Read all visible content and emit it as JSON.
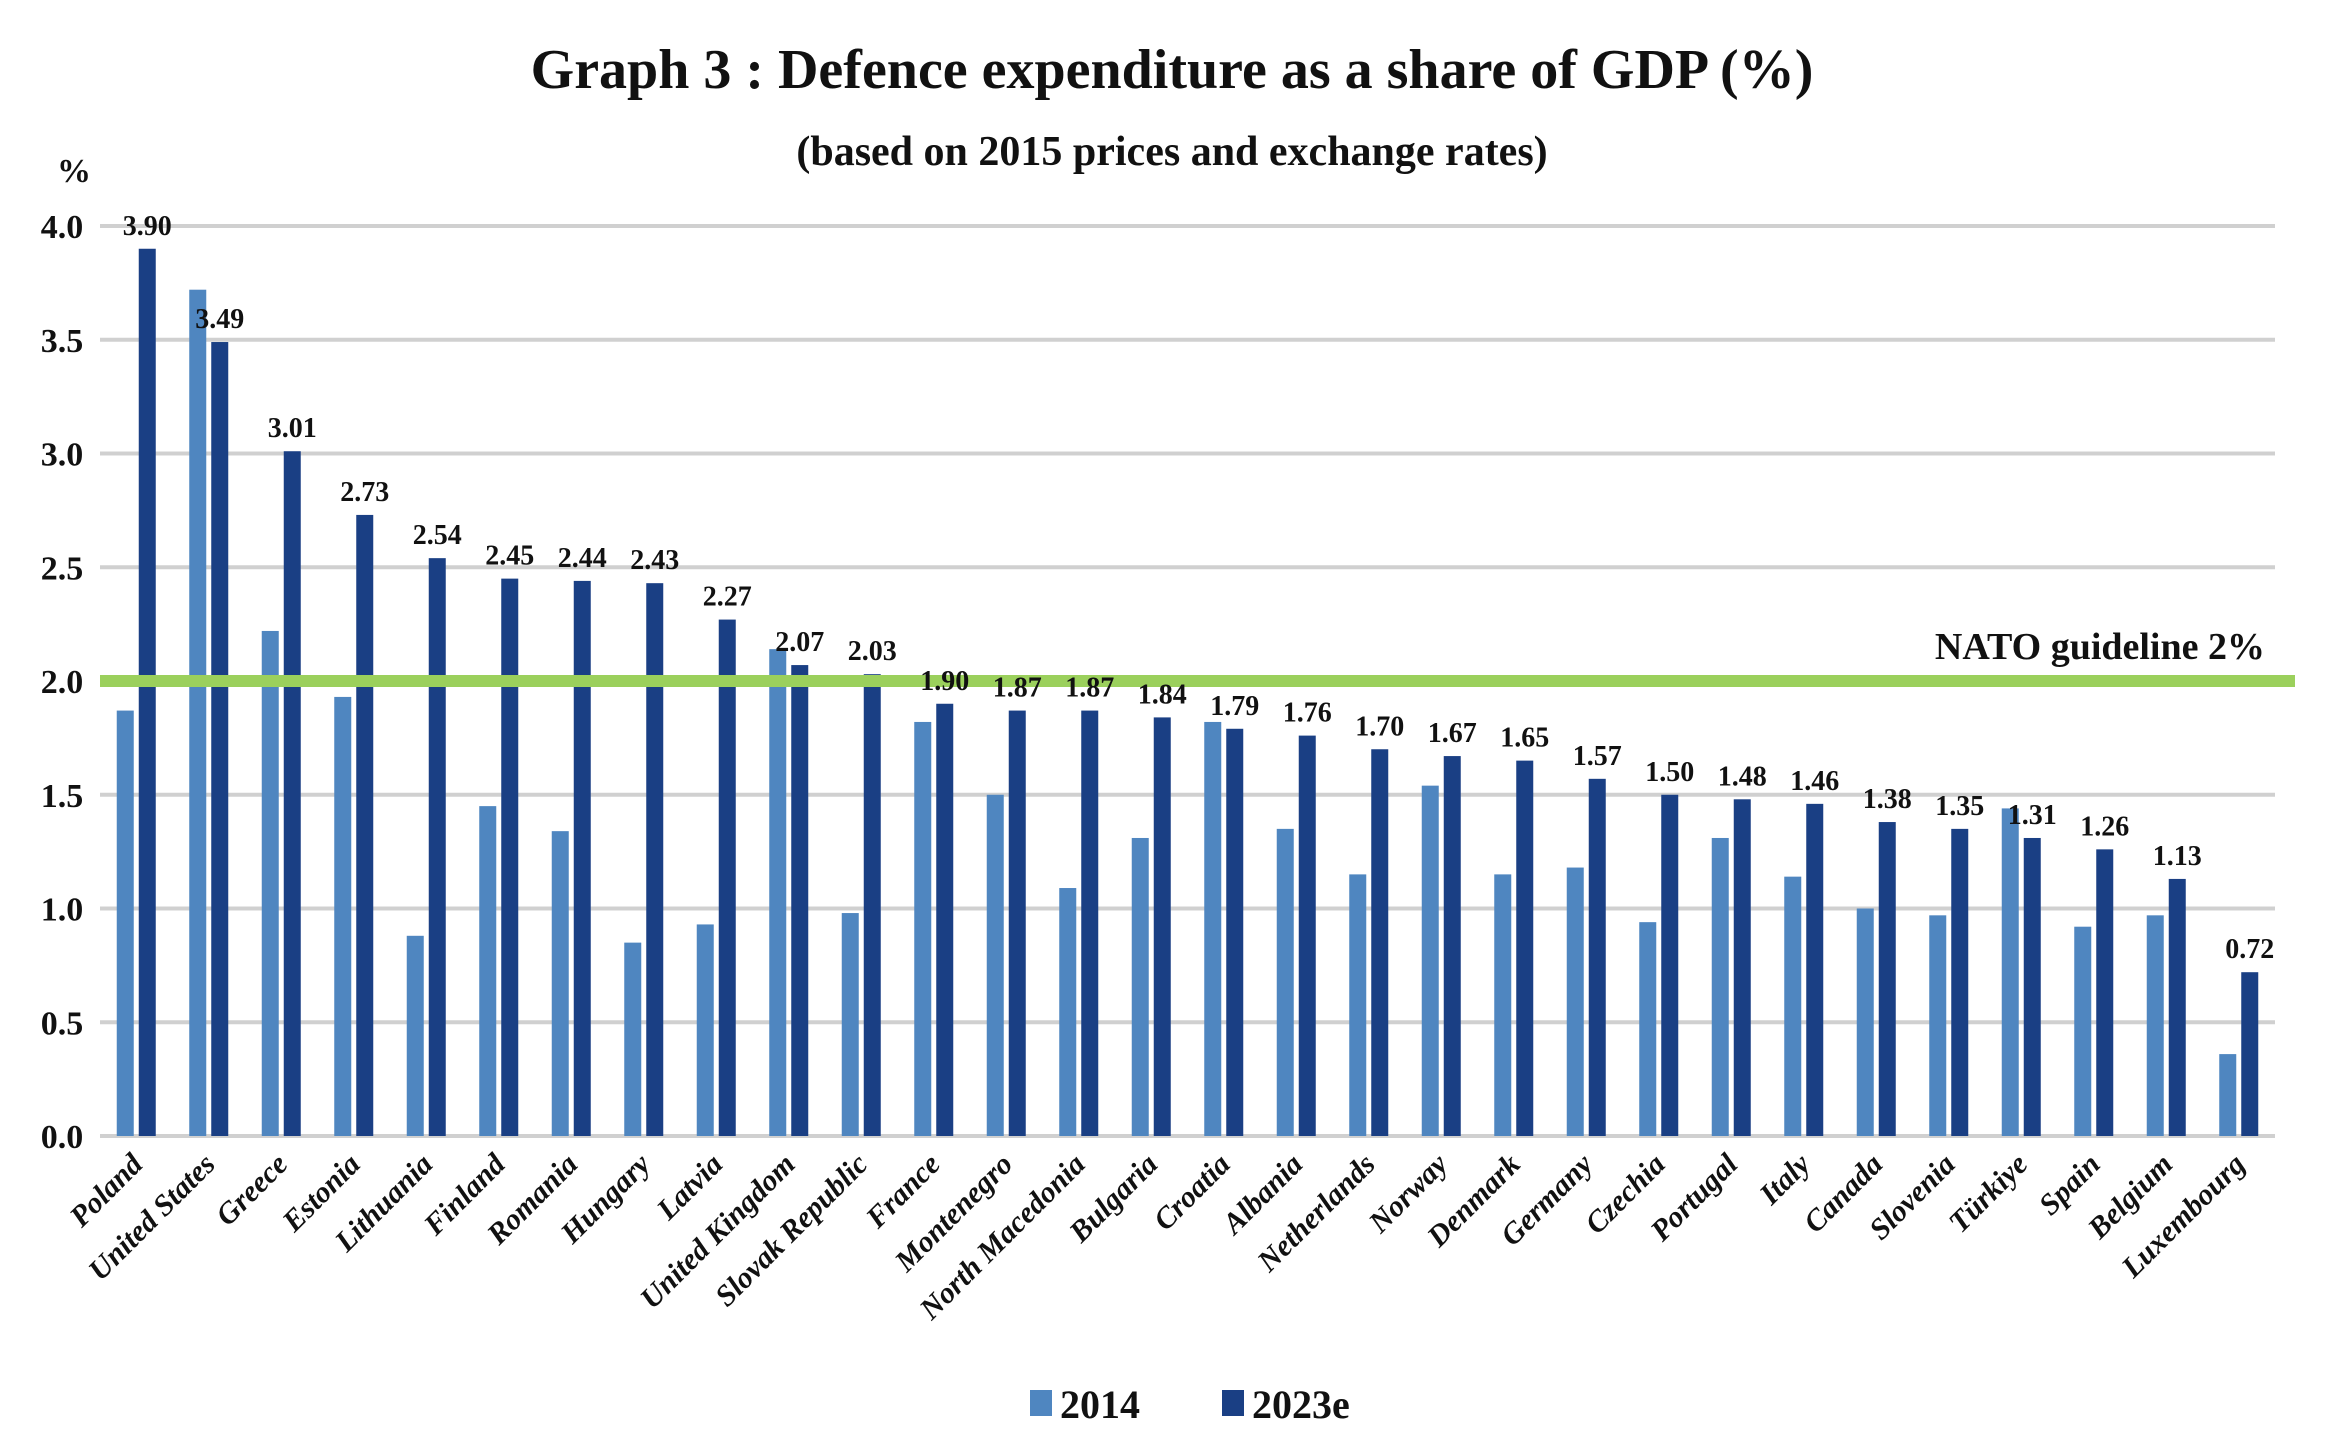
{
  "chart_data": {
    "type": "bar",
    "title": "Graph 3 : Defence expenditure as a share of GDP (%)",
    "subtitle": "(based on 2015 prices and exchange rates)",
    "ylabel": "%",
    "xlabel": "",
    "ylim": [
      0,
      4
    ],
    "yticks": [
      "0.0",
      "0.5",
      "1.0",
      "1.5",
      "2.0",
      "2.5",
      "3.0",
      "3.5",
      "4.0"
    ],
    "grid": true,
    "legend_position": "bottom-center",
    "categories": [
      "Poland",
      "United States",
      "Greece",
      "Estonia",
      "Lithuania",
      "Finland",
      "Romania",
      "Hungary",
      "Latvia",
      "United Kingdom",
      "Slovak Republic",
      "France",
      "Montenegro",
      "North Macedonia",
      "Bulgaria",
      "Croatia",
      "Albania",
      "Netherlands",
      "Norway",
      "Denmark",
      "Germany",
      "Czechia",
      "Portugal",
      "Italy",
      "Canada",
      "Slovenia",
      "Türkiye",
      "Spain",
      "Belgium",
      "Luxembourg"
    ],
    "series": [
      {
        "name": "2014",
        "color": "#4f86c0",
        "labeled": false,
        "values": [
          1.87,
          3.72,
          2.22,
          1.93,
          0.88,
          1.45,
          1.34,
          0.85,
          0.93,
          2.14,
          0.98,
          1.82,
          1.5,
          1.09,
          1.31,
          1.82,
          1.35,
          1.15,
          1.54,
          1.15,
          1.18,
          0.94,
          1.31,
          1.14,
          1.0,
          0.97,
          1.44,
          0.92,
          0.97,
          0.36
        ]
      },
      {
        "name": "2023e",
        "color": "#1a3f84",
        "labeled": true,
        "values": [
          3.9,
          3.49,
          3.01,
          2.73,
          2.54,
          2.45,
          2.44,
          2.43,
          2.27,
          2.07,
          2.03,
          1.9,
          1.87,
          1.87,
          1.84,
          1.79,
          1.76,
          1.7,
          1.67,
          1.65,
          1.57,
          1.5,
          1.48,
          1.46,
          1.38,
          1.35,
          1.31,
          1.26,
          1.13,
          0.72
        ],
        "data_labels": [
          "3.90",
          "3.49",
          "3.01",
          "2.73",
          "2.54",
          "2.45",
          "2.44",
          "2.43",
          "2.27",
          "2.07",
          "2.03",
          "1.90",
          "1.87",
          "1.87",
          "1.84",
          "1.79",
          "1.76",
          "1.70",
          "1.67",
          "1.65",
          "1.57",
          "1.50",
          "1.48",
          "1.46",
          "1.38",
          "1.35",
          "1.31",
          "1.26",
          "1.13",
          "0.72"
        ]
      }
    ],
    "reference_line": {
      "value": 2.0,
      "label": "NATO guideline 2%",
      "color": "#9bd05c"
    }
  }
}
